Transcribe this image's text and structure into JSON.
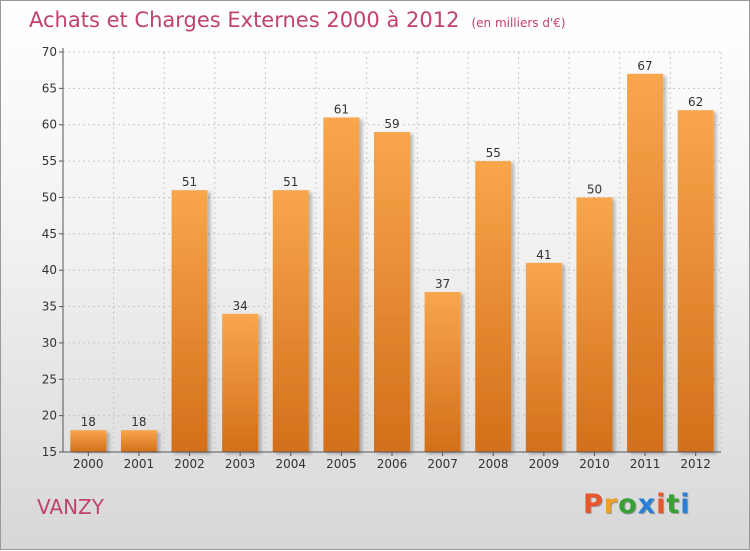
{
  "title": "Achats et Charges Externes 2000 à 2012",
  "subtitle": "(en milliers d'€)",
  "place": "VANZY",
  "logo": {
    "text": "Proxiti",
    "colors": [
      "#e8572a",
      "#f0a020",
      "#3aa036",
      "#2a7fd4",
      "#e8572a",
      "#3aa036",
      "#2a7fd4"
    ]
  },
  "colors": {
    "bar_top": "#f8a64c",
    "bar_bottom": "#d36f1a",
    "title": "#c0436b",
    "grid": "#c8c8c8"
  },
  "chart_data": {
    "type": "bar",
    "title": "Achats et Charges Externes 2000 à 2012",
    "categories": [
      "2000",
      "2001",
      "2002",
      "2003",
      "2004",
      "2005",
      "2006",
      "2007",
      "2008",
      "2009",
      "2010",
      "2011",
      "2012"
    ],
    "values": [
      18,
      18,
      51,
      34,
      51,
      61,
      59,
      37,
      55,
      41,
      50,
      67,
      62
    ],
    "ylim": [
      15,
      70
    ],
    "yticks": [
      15,
      20,
      25,
      30,
      35,
      40,
      45,
      50,
      55,
      60,
      65,
      70
    ],
    "grid": true,
    "data_labels": true
  }
}
